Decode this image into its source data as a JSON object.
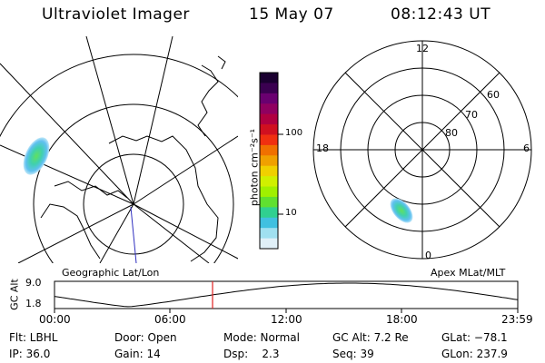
{
  "header": {
    "instrument": "Ultraviolet Imager",
    "date": "15 May 07",
    "time": "08:12:43 UT"
  },
  "colorbar": {
    "unit_label": "photon cm⁻²s⁻¹",
    "ticks": [
      "100",
      "10"
    ],
    "colors": [
      "#1a0030",
      "#3a0050",
      "#6a0070",
      "#900060",
      "#b00040",
      "#d01020",
      "#f03010",
      "#f07000",
      "#f0a000",
      "#f0d000",
      "#d0f000",
      "#a0f000",
      "#60e030",
      "#30d090",
      "#40c0e0",
      "#a0e0f0",
      "#e0f0f8"
    ]
  },
  "left_map": {
    "caption": "Geographic Lat/Lon"
  },
  "right_map": {
    "caption": "Apex MLat/MLT",
    "mlt_labels": {
      "top": "12",
      "left": "18",
      "right": "6",
      "bottom": "0"
    },
    "mlat_labels": [
      "60",
      "70",
      "80"
    ]
  },
  "gc_alt_plot": {
    "ylabel": "GC Alt",
    "ymax_label": "9.0",
    "ymin_label": "1.8",
    "x_ticks": [
      "00:00",
      "06:00",
      "12:00",
      "18:00",
      "23:59"
    ],
    "marker_color": "#e02020"
  },
  "status": {
    "row1": [
      {
        "label": "Flt: LBHL"
      },
      {
        "label": "Door: Open"
      },
      {
        "label": "Mode: Normal"
      },
      {
        "label": "GC Alt: 7.2 Re"
      },
      {
        "label": "GLat: −78.1"
      }
    ],
    "row2": [
      {
        "label": "IP: 36.0"
      },
      {
        "label": "Gain: 14"
      },
      {
        "label": "Dsp:    2.3"
      },
      {
        "label": "Seq: 39"
      },
      {
        "label": "GLon: 237.9"
      }
    ]
  }
}
